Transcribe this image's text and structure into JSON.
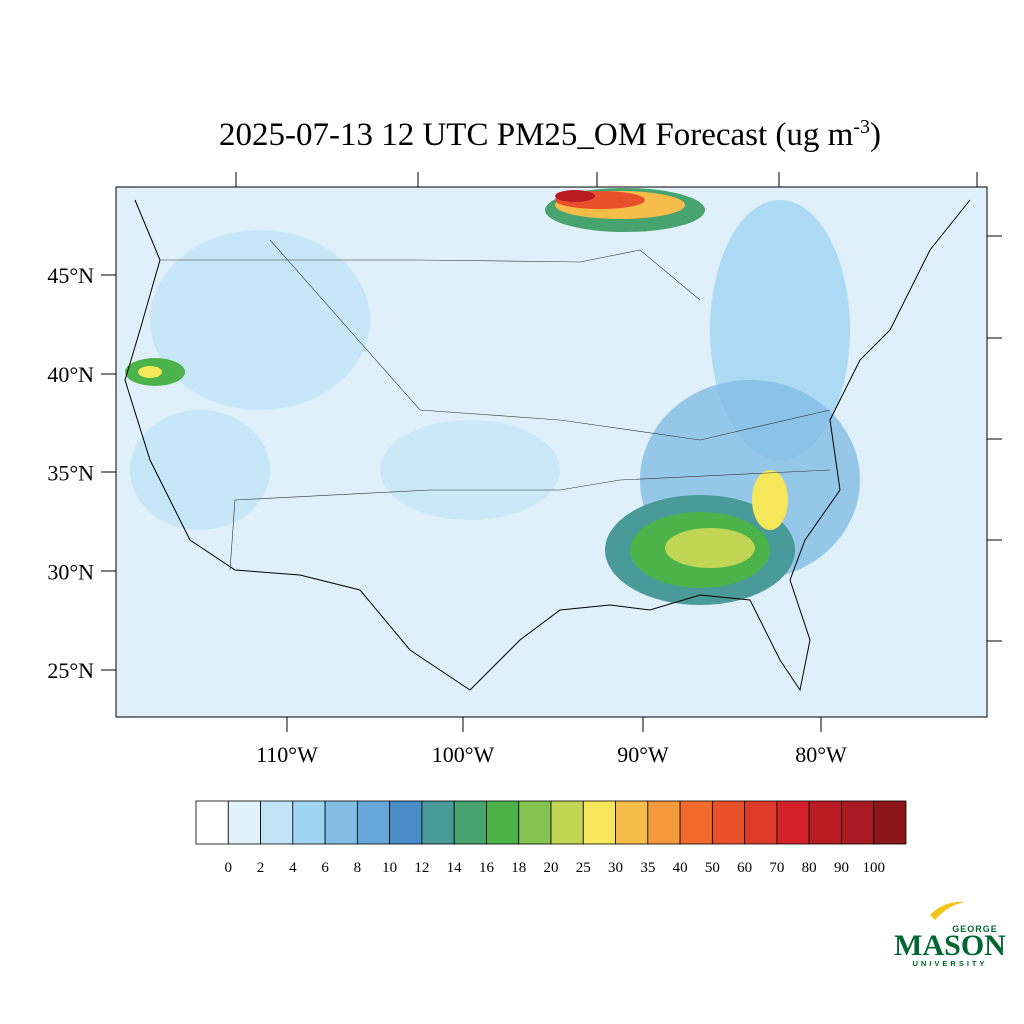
{
  "title": {
    "main": "2025-07-13 12 UTC PM25_OM Forecast (ug m",
    "superscript": "-3",
    "end": ")"
  },
  "map": {
    "latitude_labels": [
      "45°N",
      "40°N",
      "35°N",
      "30°N",
      "25°N"
    ],
    "longitude_labels": [
      "110°W",
      "100°W",
      "90°W",
      "80°W"
    ]
  },
  "colorbar": {
    "colors": [
      "#ffffff",
      "#e1f2fb",
      "#c0e4f6",
      "#9fd5f2",
      "#82bde4",
      "#66a6d8",
      "#4a8cc8",
      "#4a9a9a",
      "#47a46e",
      "#4cb34a",
      "#83c24e",
      "#c2d655",
      "#f5e65a",
      "#f7bd4a",
      "#f59a3c",
      "#f26a2e",
      "#e8502c",
      "#dd3a2a",
      "#d42129",
      "#b91b25",
      "#a81a22",
      "#8c1519"
    ],
    "labels": [
      "0",
      "2",
      "4",
      "6",
      "8",
      "10",
      "12",
      "14",
      "16",
      "18",
      "20",
      "25",
      "30",
      "35",
      "40",
      "50",
      "60",
      "70",
      "80",
      "90",
      "100"
    ]
  },
  "logo": {
    "top": "GEORGE",
    "main": "MASON",
    "bottom": "UNIVERSITY"
  }
}
